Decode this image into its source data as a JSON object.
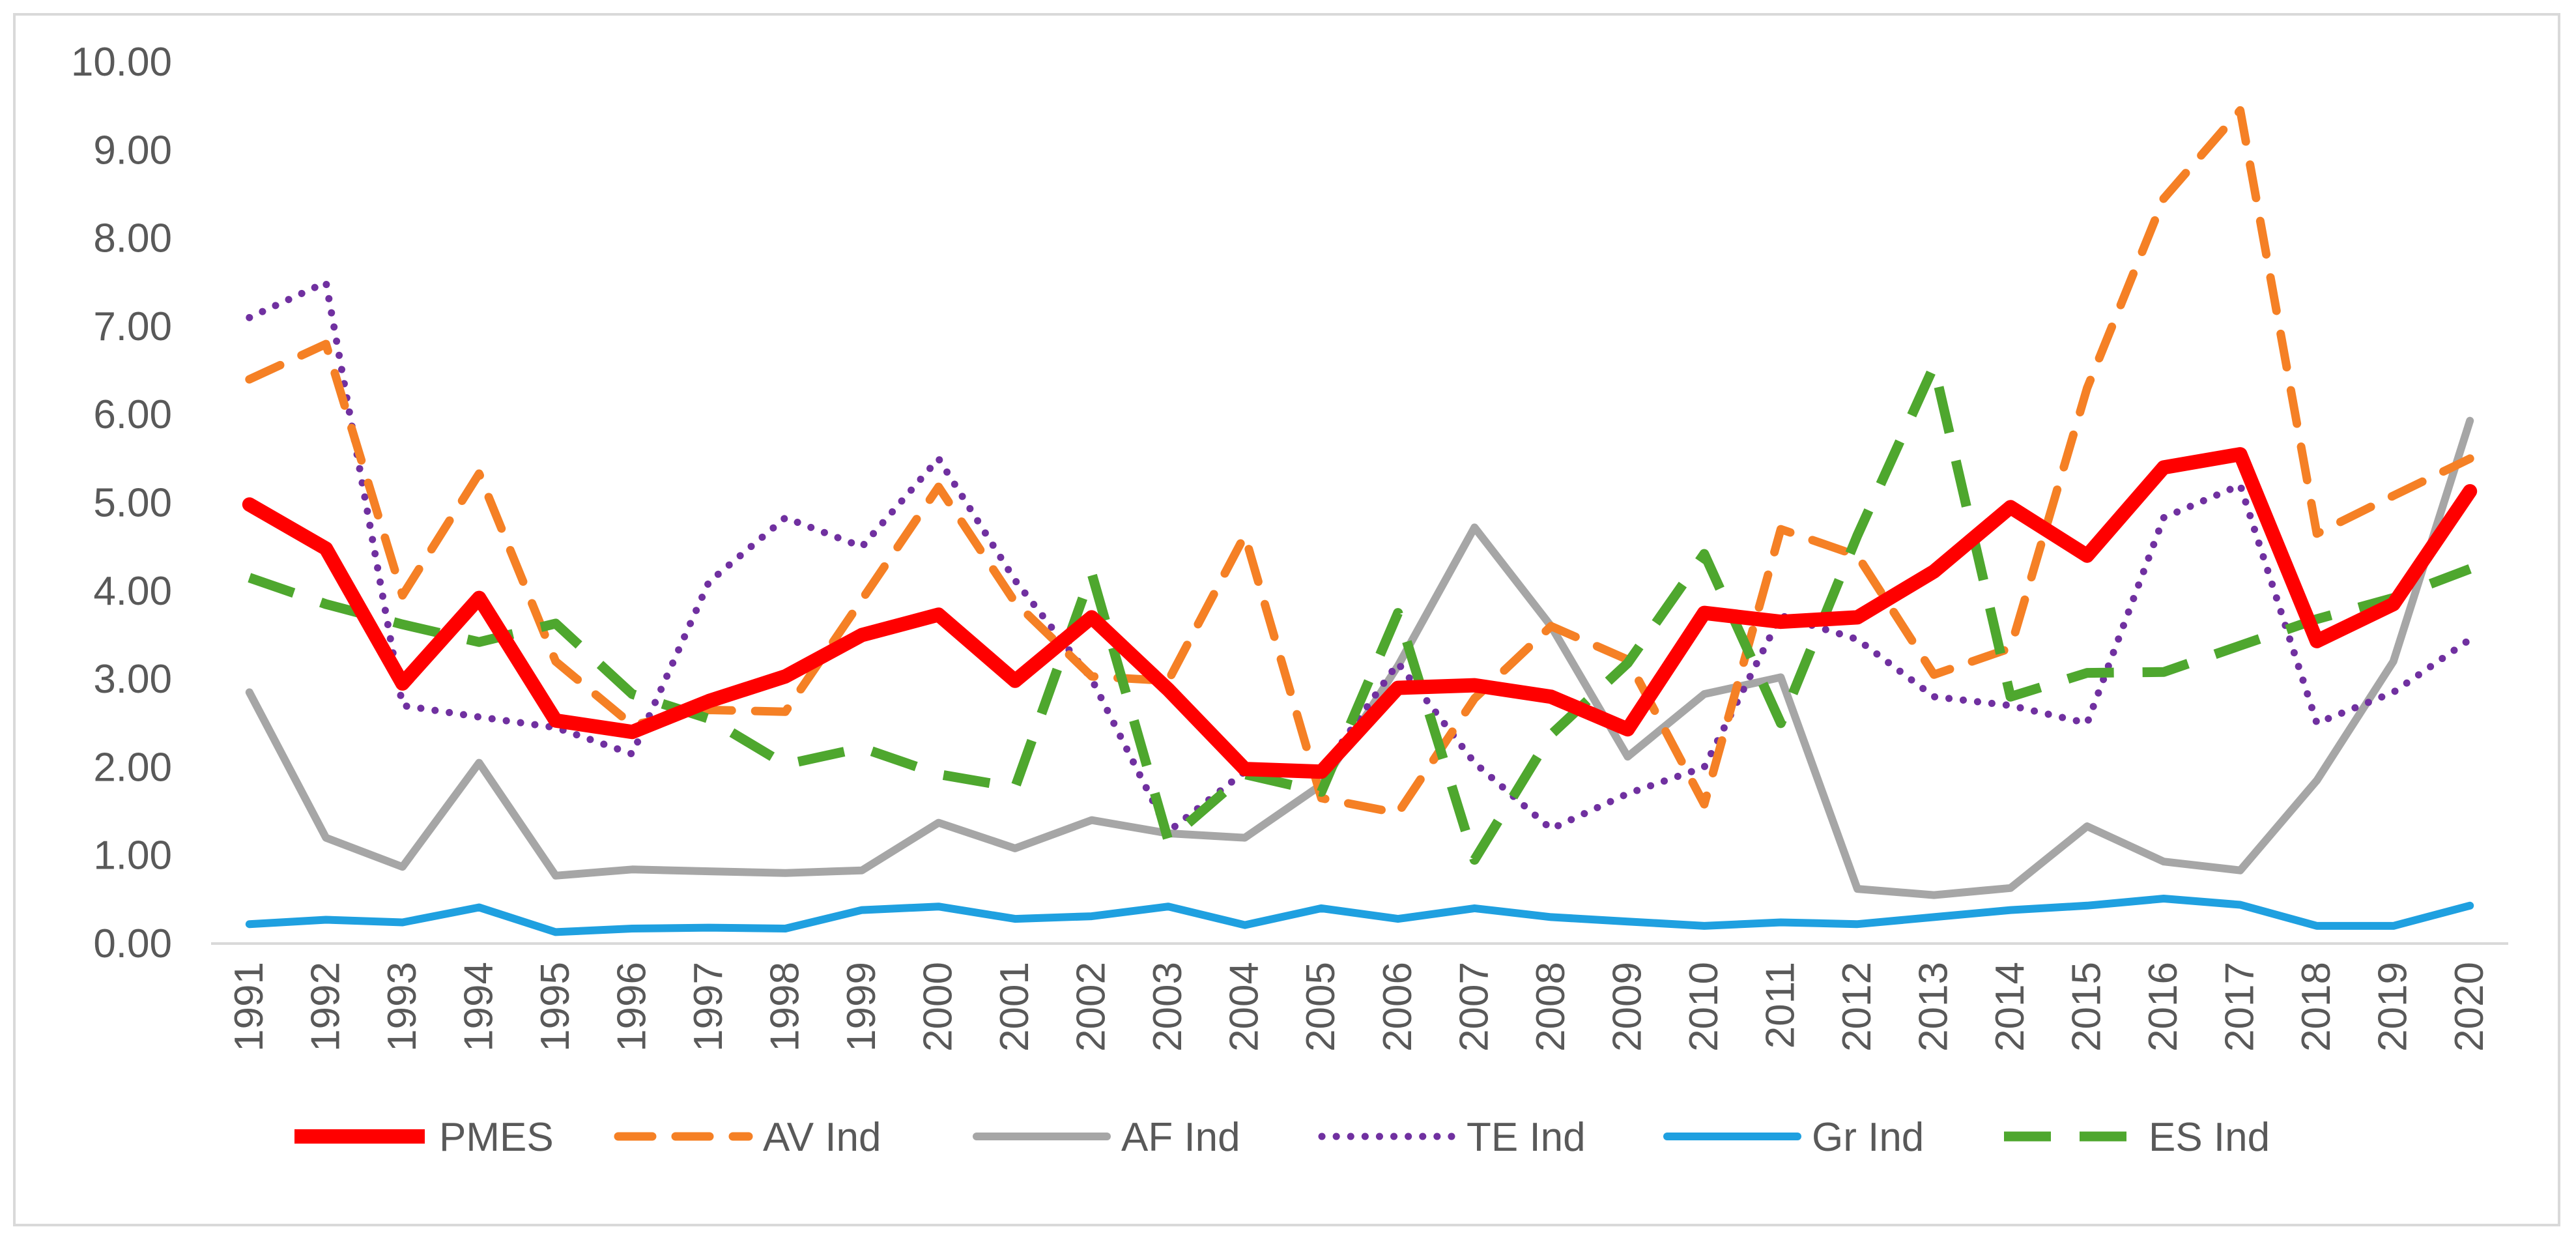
{
  "chart_data": {
    "type": "line",
    "title": "",
    "xlabel": "",
    "ylabel": "",
    "ylim": [
      0,
      10
    ],
    "y_ticks": [
      "0.00",
      "1.00",
      "2.00",
      "3.00",
      "4.00",
      "5.00",
      "6.00",
      "7.00",
      "8.00",
      "9.00",
      "10.00"
    ],
    "grid": false,
    "legend_position": "bottom",
    "categories": [
      "1991",
      "1992",
      "1993",
      "1994",
      "1995",
      "1996",
      "1997",
      "1998",
      "1999",
      "2000",
      "2001",
      "2002",
      "2003",
      "2004",
      "2005",
      "2006",
      "2007",
      "2008",
      "2009",
      "2010",
      "2011",
      "2012",
      "2013",
      "2014",
      "2015",
      "2016",
      "2017",
      "2018",
      "2019",
      "2020"
    ],
    "series": [
      {
        "name": "PMES",
        "color": "#ff0000",
        "style": "solid-thick",
        "values": [
          4.98,
          4.48,
          2.95,
          3.92,
          2.53,
          2.4,
          2.75,
          3.03,
          3.5,
          3.73,
          2.98,
          3.7,
          2.88,
          1.98,
          1.95,
          2.9,
          2.93,
          2.8,
          2.43,
          3.75,
          3.65,
          3.7,
          4.22,
          4.95,
          4.4,
          5.4,
          5.55,
          3.43,
          3.85,
          5.13
        ]
      },
      {
        "name": "AV Ind",
        "color": "#f58025",
        "style": "dashed",
        "values": [
          6.4,
          6.8,
          3.95,
          5.33,
          3.2,
          2.48,
          2.65,
          2.63,
          3.9,
          5.18,
          3.87,
          3.03,
          2.98,
          4.63,
          1.65,
          1.48,
          2.78,
          3.6,
          3.22,
          1.58,
          4.7,
          4.4,
          3.05,
          3.35,
          6.3,
          8.45,
          9.45,
          4.65,
          5.08,
          5.5
        ]
      },
      {
        "name": "AF Ind",
        "color": "#a6a6a6",
        "style": "solid",
        "values": [
          2.85,
          1.2,
          0.87,
          2.05,
          0.77,
          0.84,
          0.82,
          0.8,
          0.83,
          1.37,
          1.08,
          1.4,
          1.25,
          1.2,
          1.8,
          3.15,
          4.72,
          3.6,
          2.12,
          2.83,
          3.02,
          0.62,
          0.55,
          0.63,
          1.33,
          0.93,
          0.83,
          1.85,
          3.2,
          5.93
        ]
      },
      {
        "name": "TE Ind",
        "color": "#7030a0",
        "style": "dotted",
        "values": [
          7.1,
          7.5,
          2.7,
          2.57,
          2.45,
          2.15,
          4.1,
          4.83,
          4.5,
          5.5,
          4.12,
          3.0,
          1.27,
          1.95,
          1.95,
          3.18,
          2.05,
          1.3,
          1.7,
          2.0,
          3.72,
          3.45,
          2.8,
          2.7,
          2.5,
          4.83,
          5.2,
          2.5,
          2.85,
          3.45
        ]
      },
      {
        "name": "Gr Ind",
        "color": "#1fa0e0",
        "style": "solid",
        "values": [
          0.22,
          0.27,
          0.24,
          0.41,
          0.13,
          0.17,
          0.18,
          0.17,
          0.38,
          0.42,
          0.28,
          0.31,
          0.42,
          0.21,
          0.4,
          0.28,
          0.4,
          0.3,
          0.25,
          0.2,
          0.24,
          0.22,
          0.3,
          0.38,
          0.43,
          0.51,
          0.44,
          0.2,
          0.2,
          0.43
        ]
      },
      {
        "name": "ES Ind",
        "color": "#4ea72e",
        "style": "dashed-long",
        "values": [
          4.15,
          3.85,
          3.62,
          3.42,
          3.63,
          2.83,
          2.55,
          2.03,
          2.22,
          1.92,
          1.77,
          4.2,
          1.17,
          1.92,
          1.72,
          3.75,
          0.95,
          2.37,
          3.18,
          4.42,
          2.5,
          4.63,
          6.55,
          2.8,
          3.07,
          3.08,
          3.38,
          3.68,
          3.92,
          4.25
        ]
      }
    ]
  }
}
